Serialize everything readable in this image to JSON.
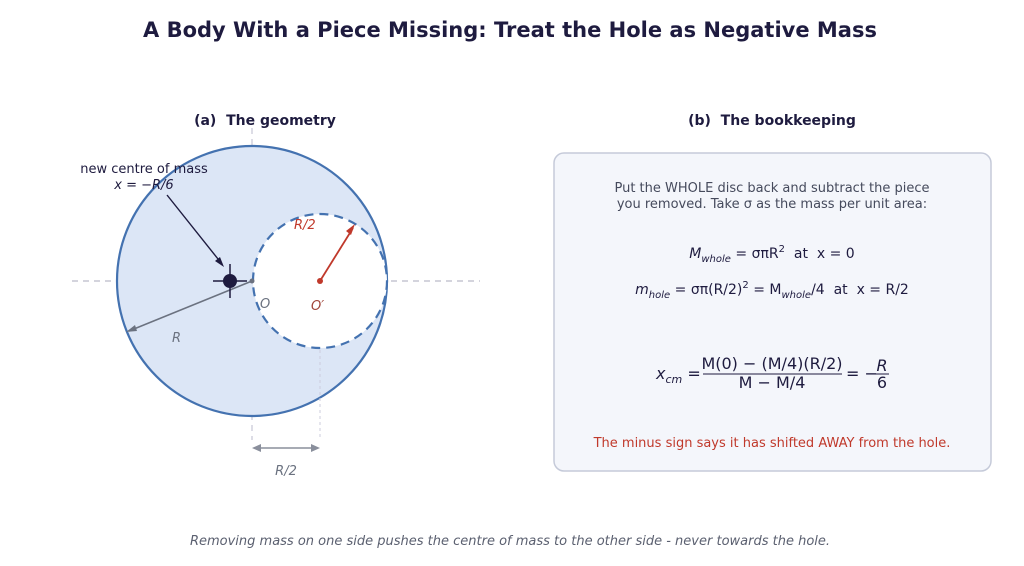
{
  "title": "A Body With a Piece Missing: Treat the Hole as Negative Mass",
  "caption": "Removing mass on one side pushes the centre of mass to the other side - never towards the hole.",
  "panel_a": {
    "title": "(a)  The geometry",
    "annotation": [
      "new centre of mass",
      "x = −R/6"
    ],
    "labels": {
      "hole_radius": "R/2",
      "centre": "O",
      "hole_centre": "O′",
      "radius": "R",
      "offset": "R/2"
    }
  },
  "panel_b": {
    "title": "(b)  The bookkeeping",
    "intro": [
      "Put the WHOLE disc back and subtract the piece",
      "you removed. Take σ as the mass per unit area:"
    ],
    "eq1": [
      "M",
      "whole",
      " = σπR",
      "2",
      "  at  x = 0"
    ],
    "eq2": [
      "m",
      "hole",
      " = σπ(R/2)",
      "2",
      " = M",
      "whole",
      "/4  at  x = R/2"
    ],
    "eq3": {
      "lhs": "x",
      "lhs_sub": "cm",
      "eq": " =",
      "numerator": "M(0) − (M/4)(R/2)",
      "denominator": "M − M/4",
      "mid": "= −",
      "rhs_num": "R",
      "rhs_den": "6"
    },
    "note": "The minus sign says it has shifted AWAY from the hole."
  }
}
